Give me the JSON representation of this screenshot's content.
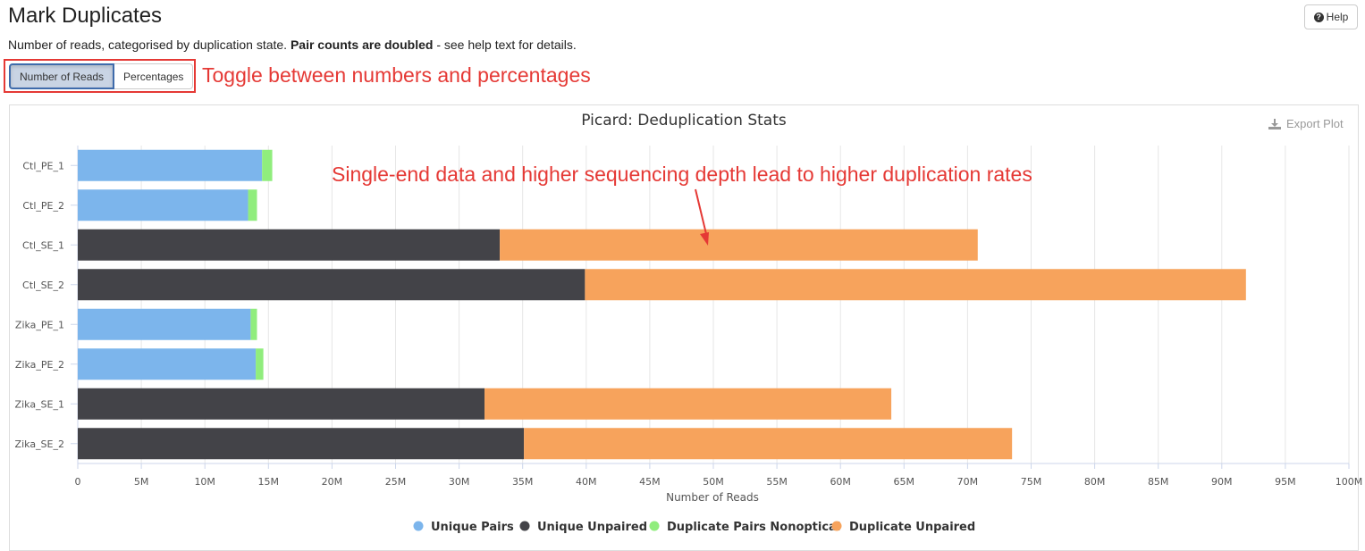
{
  "header": {
    "title": "Mark Duplicates",
    "help_label": "Help",
    "description_pre": "Number of reads, categorised by duplication state. ",
    "description_bold": "Pair counts are doubled",
    "description_post": " - see help text for details."
  },
  "toggle": {
    "options": [
      "Number of Reads",
      "Percentages"
    ],
    "active": "Number of Reads",
    "annotation": "Toggle between numbers and percentages"
  },
  "plot": {
    "export_label": "Export Plot",
    "annotation": "Single-end data and higher sequencing depth lead to higher duplication rates"
  },
  "colors": {
    "unique_pairs": "#7cb5ec",
    "unique_unpaired": "#434348",
    "duplicate_pairs_nonoptical": "#90ed7d",
    "duplicate_unpaired": "#f7a35c",
    "annotation_red": "#e53935"
  },
  "chart_data": {
    "type": "bar",
    "orientation": "horizontal",
    "stacked": true,
    "title": "Picard: Deduplication Stats",
    "xlabel": "Number of Reads",
    "ylabel": "",
    "xlim": [
      0,
      100000000
    ],
    "xticks": [
      "0",
      "5M",
      "10M",
      "15M",
      "20M",
      "25M",
      "30M",
      "35M",
      "40M",
      "45M",
      "50M",
      "55M",
      "60M",
      "65M",
      "70M",
      "75M",
      "80M",
      "85M",
      "90M",
      "95M",
      "100M"
    ],
    "grid": true,
    "legend_position": "bottom",
    "categories": [
      "Ctl_PE_1",
      "Ctl_PE_2",
      "Ctl_SE_1",
      "Ctl_SE_2",
      "Zika_PE_1",
      "Zika_PE_2",
      "Zika_SE_1",
      "Zika_SE_2"
    ],
    "series": [
      {
        "name": "Unique Pairs",
        "color": "#7cb5ec",
        "values": [
          14500000,
          13400000,
          0,
          0,
          13600000,
          14000000,
          0,
          0
        ]
      },
      {
        "name": "Unique Unpaired",
        "color": "#434348",
        "values": [
          0,
          0,
          33200000,
          39900000,
          0,
          0,
          32000000,
          35100000
        ]
      },
      {
        "name": "Duplicate Pairs Nonoptical",
        "color": "#90ed7d",
        "values": [
          800000,
          700000,
          0,
          0,
          500000,
          600000,
          0,
          0
        ]
      },
      {
        "name": "Duplicate Unpaired",
        "color": "#f7a35c",
        "values": [
          0,
          0,
          37600000,
          52000000,
          0,
          0,
          32000000,
          38400000
        ]
      }
    ]
  }
}
